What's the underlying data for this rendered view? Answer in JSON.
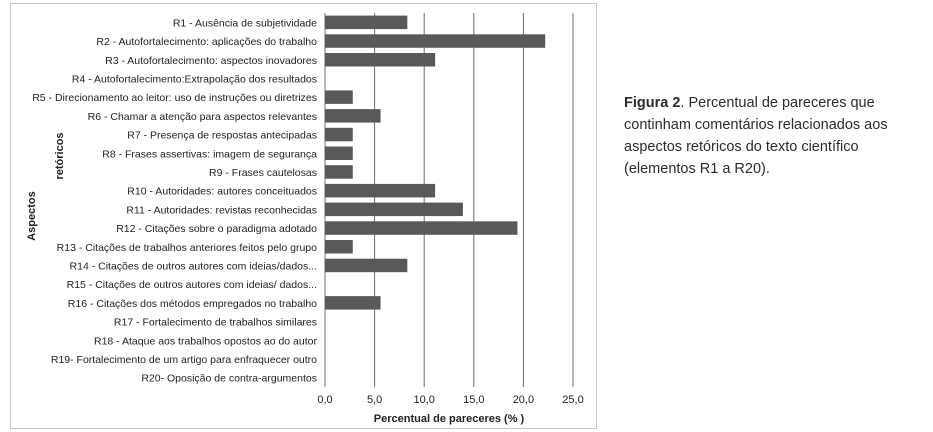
{
  "caption": {
    "label": "Figura 2",
    "text": ". Percentual de pareceres que continham comentários relacionados aos aspectos retóricos do texto científico (elementos R1 a R20)."
  },
  "chart_data": {
    "type": "bar",
    "orientation": "horizontal",
    "categories": [
      "R1 - Ausência de subjetividade",
      "R2 - Autofortalecimento: aplicações do trabalho",
      "R3 - Autofortalecimento: aspectos inovadores",
      "R4 - Autofortalecimento:Extrapolação dos resultados",
      "R5 - Direcionamento ao leitor: uso de instruções ou diretrizes",
      "R6 - Chamar a atenção para aspectos relevantes",
      "R7 - Presença de respostas antecipadas",
      "R8 - Frases assertivas: imagem de segurança",
      "R9 - Frases cautelosas",
      "R10 - Autoridades: autores conceituados",
      "R11 - Autoridades: revistas reconhecidas",
      "R12 - Citações sobre o paradigma adotado",
      "R13 - Citações de trabalhos anteriores feitos pelo grupo",
      "R14 - Citações de outros autores com ideias/dados...",
      "R15 - Citações de outros autores com ideias/ dados...",
      "R16 - Citações dos métodos empregados no trabalho",
      "R17 - Fortalecimento de trabalhos similares",
      "R18 - Ataque aos trabalhos opostos ao do autor",
      "R19- Fortalecimento de um artigo para enfraquecer outro",
      "R20- Oposição de contra-argumentos"
    ],
    "values": [
      8.3,
      22.2,
      11.1,
      0,
      2.8,
      5.6,
      2.8,
      2.8,
      2.8,
      11.1,
      13.9,
      19.4,
      2.8,
      8.3,
      0,
      5.6,
      0,
      0,
      0,
      0
    ],
    "xlim": [
      0,
      25
    ],
    "xticks": [
      "0,0",
      "5,0",
      "10,0",
      "15,0",
      "20,0",
      "25,0"
    ],
    "xlabel": "Percentual de pareceres (% )",
    "ylabel_line1": "Aspectos",
    "ylabel_line2": "retóricos",
    "grid": "vertical",
    "bar_color": "#595959"
  }
}
